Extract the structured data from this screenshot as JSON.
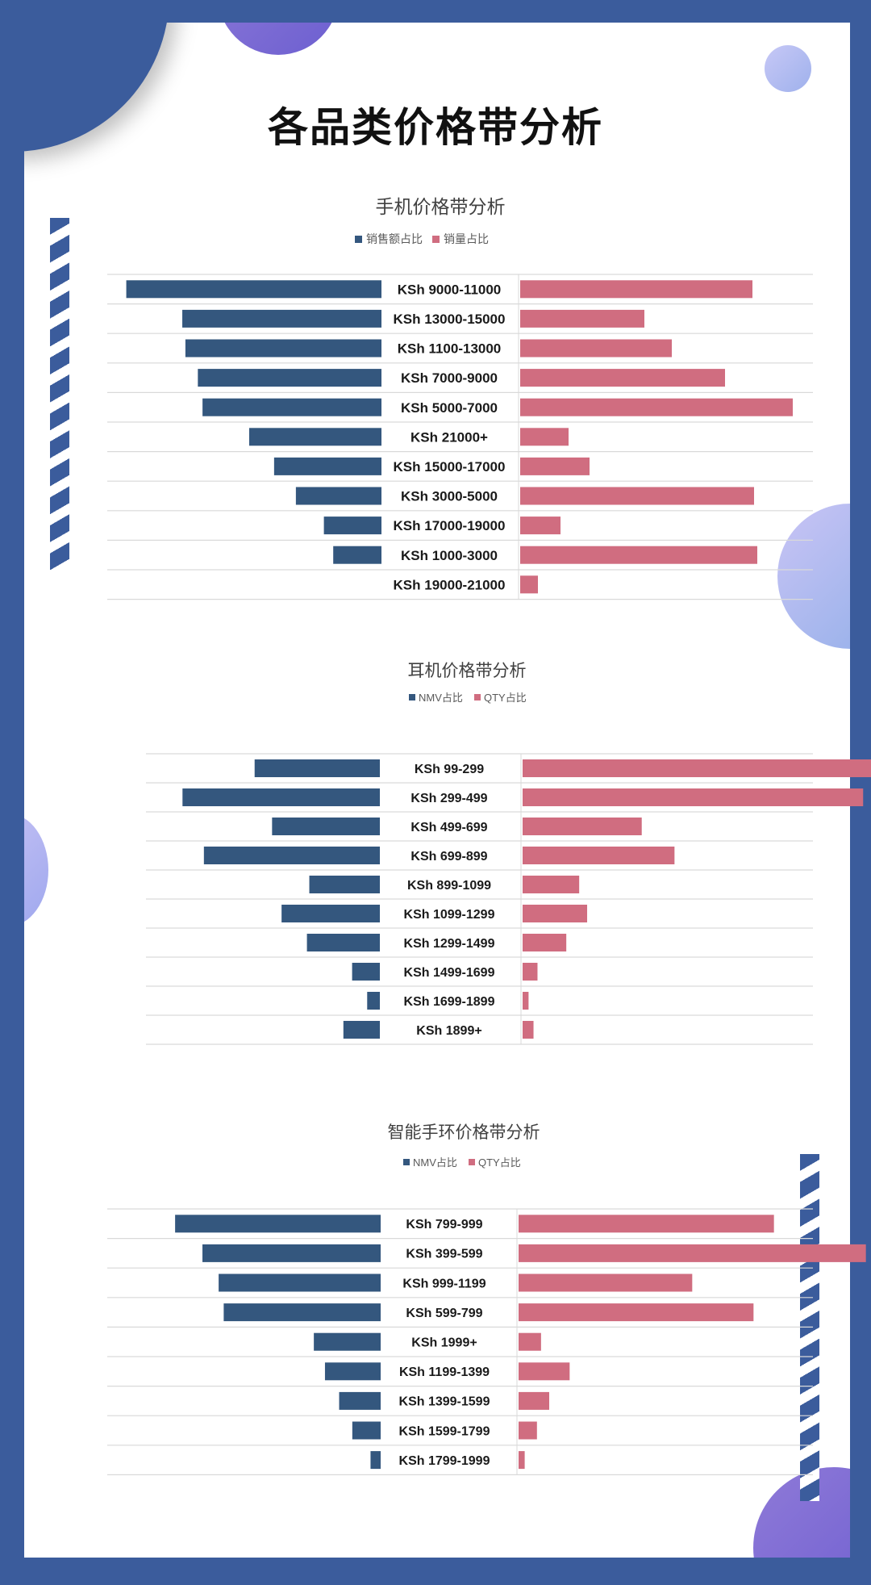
{
  "page_title": "各品类价格带分析",
  "colors": {
    "left": "#34577e",
    "right": "#d06d80",
    "grid": "#d9d9d9",
    "bg": "#3b5c9c"
  },
  "chart_data": [
    {
      "type": "bar",
      "orientation": "butterfly",
      "title": "手机价格带分析",
      "legend": [
        "销售额占比",
        "销量占比"
      ],
      "categories": [
        "KSh 9000-11000",
        "KSh 13000-15000",
        "KSh 1100-13000",
        "KSh 7000-9000",
        "KSh 5000-7000",
        "KSh 21000+",
        "KSh 15000-17000",
        "KSh 3000-5000",
        "KSh 17000-19000",
        "KSh 1000-3000",
        "KSh 19000-21000"
      ],
      "series": [
        {
          "name": "销售额占比",
          "values": [
            16.4,
            12.8,
            12.6,
            11.8,
            11.5,
            8.5,
            6.9,
            5.5,
            3.7,
            3.1,
            0
          ]
        },
        {
          "name": "销量占比",
          "values": [
            14.4,
            7.7,
            9.4,
            12.7,
            16.9,
            3.0,
            4.3,
            14.5,
            2.5,
            14.7,
            1.1
          ]
        }
      ],
      "xlim": [
        0,
        17
      ]
    },
    {
      "type": "bar",
      "orientation": "butterfly",
      "title": "耳机价格带分析",
      "legend": [
        "NMV占比",
        "QTY占比"
      ],
      "categories": [
        "KSh 99-299",
        "KSh 299-499",
        "KSh 499-699",
        "KSh 699-899",
        "KSh 899-1099",
        "KSh 1099-1299",
        "KSh 1299-1499",
        "KSh 1499-1699",
        "KSh 1699-1899",
        "KSh 1899+"
      ],
      "series": [
        {
          "name": "NMV占比",
          "values": [
            15.8,
            24.9,
            13.6,
            22.2,
            8.9,
            12.4,
            9.2,
            3.5,
            1.6,
            4.6
          ]
        },
        {
          "name": "QTY占比",
          "values": [
            35.3,
            34.3,
            12.0,
            15.3,
            5.7,
            6.5,
            4.4,
            1.5,
            0.6,
            1.1
          ]
        }
      ],
      "xlim": [
        0,
        29
      ]
    },
    {
      "type": "bar",
      "orientation": "butterfly",
      "title": "智能手环价格带分析",
      "legend": [
        "NMV占比",
        "QTY占比"
      ],
      "categories": [
        "KSh 799-999",
        "KSh 399-599",
        "KSh 999-1199",
        "KSh 599-799",
        "KSh 1999+",
        "KSh 1199-1399",
        "KSh 1399-1599",
        "KSh 1599-1799",
        "KSh 1799-1999"
      ],
      "series": [
        {
          "name": "NMV占比",
          "values": [
            20.3,
            17.6,
            16.0,
            15.5,
            6.6,
            5.5,
            4.1,
            2.8,
            1.0
          ]
        },
        {
          "name": "QTY占比",
          "values": [
            25.0,
            34.0,
            17.0,
            23.0,
            2.2,
            5.0,
            3.0,
            1.8,
            0.6
          ]
        }
      ],
      "xlim": [
        0,
        27
      ]
    }
  ]
}
